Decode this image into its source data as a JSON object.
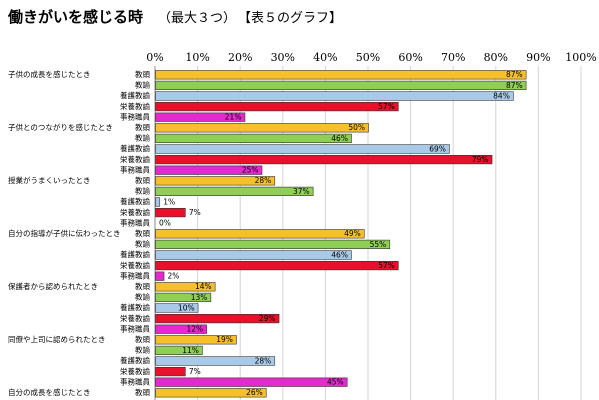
{
  "header": {
    "title": "働きがいを感じる時",
    "subtitle": "（最大３つ）",
    "reference": "【表５のグラフ】"
  },
  "chart_data": {
    "type": "bar",
    "orientation": "horizontal",
    "xlim": [
      0,
      100
    ],
    "xticks": [
      "0%",
      "10%",
      "20%",
      "30%",
      "40%",
      "50%",
      "60%",
      "70%",
      "80%",
      "90%",
      "100%"
    ],
    "grid": true,
    "role_colors": {
      "教頭": "#f6c02c",
      "教諭": "#8fcf56",
      "養護教諭": "#a9c9e8",
      "栄養教諭": "#e8102a",
      "事務職員": "#e52acd"
    },
    "groups": [
      {
        "label": "子供の成長を感じたとき",
        "bars": [
          {
            "role": "教頭",
            "value": 87,
            "label": "87%"
          },
          {
            "role": "教諭",
            "value": 87,
            "label": "87%"
          },
          {
            "role": "養護教諭",
            "value": 84,
            "label": "84%"
          },
          {
            "role": "栄養教諭",
            "value": 57,
            "label": "57%"
          },
          {
            "role": "事務職員",
            "value": 21,
            "label": "21%"
          }
        ]
      },
      {
        "label": "子供とのつながりを感じたとき",
        "bars": [
          {
            "role": "教頭",
            "value": 50,
            "label": "50%"
          },
          {
            "role": "教諭",
            "value": 46,
            "label": "46%"
          },
          {
            "role": "養護教諭",
            "value": 69,
            "label": "69%"
          },
          {
            "role": "栄養教諭",
            "value": 79,
            "label": "79%"
          },
          {
            "role": "事務職員",
            "value": 25,
            "label": "25%"
          }
        ]
      },
      {
        "label": "授業がうまくいったとき",
        "bars": [
          {
            "role": "教頭",
            "value": 28,
            "label": "28%"
          },
          {
            "role": "教諭",
            "value": 37,
            "label": "37%"
          },
          {
            "role": "養護教諭",
            "value": 1,
            "label": "1%"
          },
          {
            "role": "栄養教諭",
            "value": 7,
            "label": "7%"
          },
          {
            "role": "事務職員",
            "value": 0,
            "label": "0%"
          }
        ]
      },
      {
        "label": "自分の指導が子供に伝わったとき",
        "bars": [
          {
            "role": "教頭",
            "value": 49,
            "label": "49%"
          },
          {
            "role": "教諭",
            "value": 55,
            "label": "55%"
          },
          {
            "role": "養護教諭",
            "value": 46,
            "label": "46%"
          },
          {
            "role": "栄養教諭",
            "value": 57,
            "label": "57%"
          },
          {
            "role": "事務職員",
            "value": 2,
            "label": "2%"
          }
        ]
      },
      {
        "label": "保護者から認められたとき",
        "bars": [
          {
            "role": "教頭",
            "value": 14,
            "label": "14%"
          },
          {
            "role": "教諭",
            "value": 13,
            "label": "13%"
          },
          {
            "role": "養護教諭",
            "value": 10,
            "label": "10%"
          },
          {
            "role": "栄養教諭",
            "value": 29,
            "label": "29%"
          },
          {
            "role": "事務職員",
            "value": 12,
            "label": "12%"
          }
        ]
      },
      {
        "label": "同僚や上司に認められたとき",
        "bars": [
          {
            "role": "教頭",
            "value": 19,
            "label": "19%"
          },
          {
            "role": "教諭",
            "value": 11,
            "label": "11%"
          },
          {
            "role": "養護教諭",
            "value": 28,
            "label": "28%"
          },
          {
            "role": "栄養教諭",
            "value": 7,
            "label": "7%"
          },
          {
            "role": "事務職員",
            "value": 45,
            "label": "45%"
          }
        ]
      },
      {
        "label": "自分の成長を感じたとき",
        "bars": [
          {
            "role": "教頭",
            "value": 26,
            "label": "26%"
          }
        ]
      }
    ]
  }
}
